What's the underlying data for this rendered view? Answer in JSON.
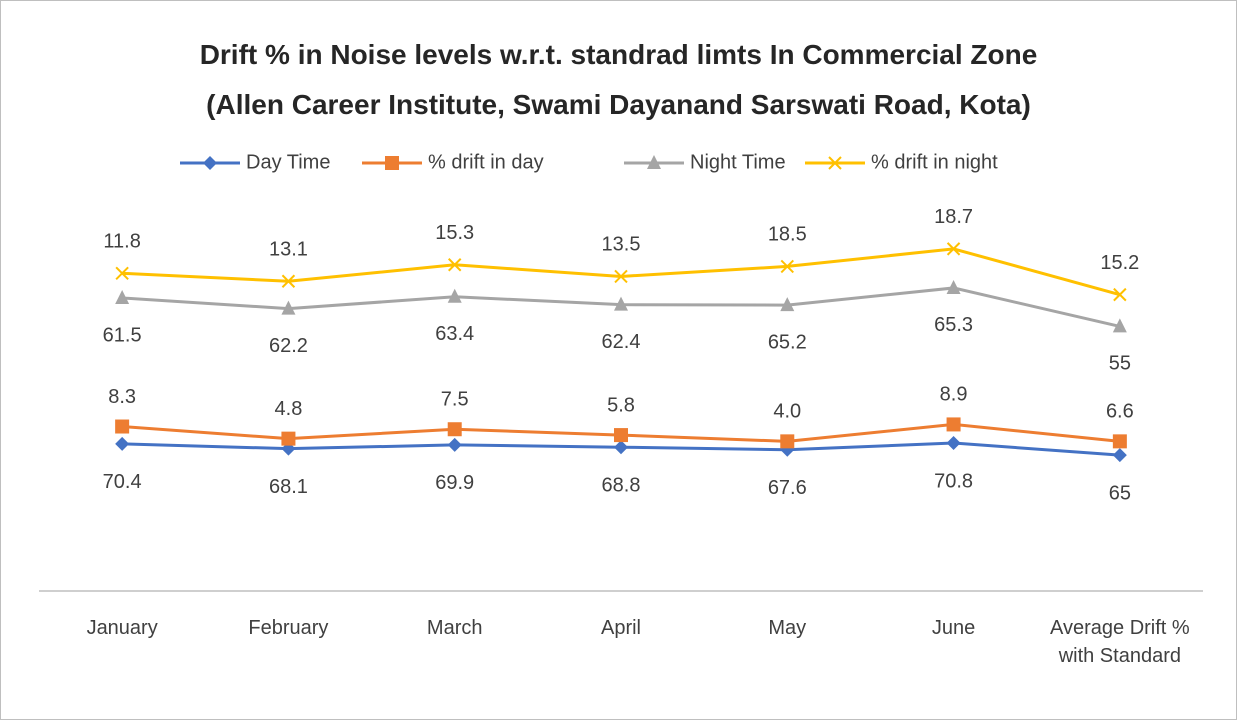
{
  "chart_data": {
    "type": "line",
    "stacked": true,
    "title": "Drift % in Noise levels w.r.t. standrad limts In Commercial Zone\n(Allen Career Institute, Swami Dayanand Sarswati Road, Kota)",
    "categories": [
      "January",
      "February",
      "March",
      "April",
      "May",
      "June",
      "Average Drift % with Standard"
    ],
    "ylim": [
      0,
      200
    ],
    "series": [
      {
        "name": "Day Time",
        "color": "#4472c4",
        "marker": "diamond",
        "values": [
          70.4,
          68.1,
          69.9,
          68.8,
          67.6,
          70.8,
          65
        ]
      },
      {
        "name": "% drift in day",
        "color": "#ed7d31",
        "marker": "square",
        "values": [
          8.3,
          4.8,
          7.5,
          5.8,
          4,
          8.9,
          6.6
        ],
        "value_labels": [
          "8.3",
          "4.8",
          "7.5",
          "5.8",
          "4.0",
          "8.9",
          "6.6"
        ]
      },
      {
        "name": "Night Time",
        "color": "#a5a5a5",
        "marker": "triangle",
        "values": [
          61.5,
          62.2,
          63.4,
          62.4,
          65.2,
          65.3,
          55
        ]
      },
      {
        "name": "% drift in night",
        "color": "#ffc000",
        "marker": "x",
        "values": [
          11.8,
          13.1,
          15.3,
          13.5,
          18.5,
          18.7,
          15.2
        ]
      }
    ],
    "legend": "top"
  }
}
